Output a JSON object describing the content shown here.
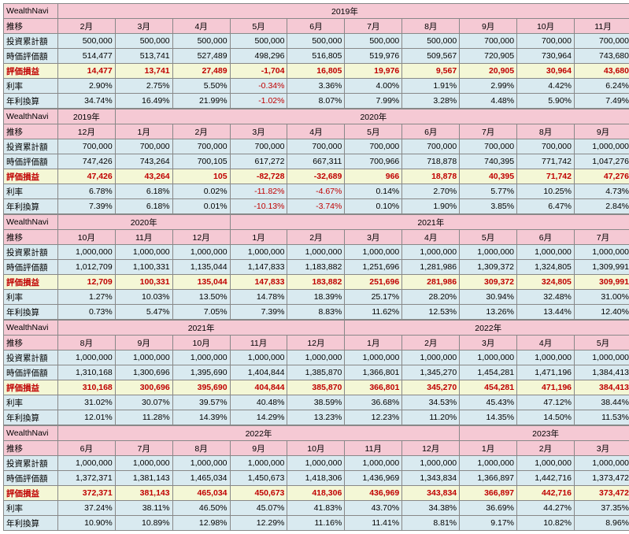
{
  "title": "WealthNavi",
  "subtitle": "推移",
  "row_labels": {
    "invest": "投資累計額",
    "mkt": "時価評価額",
    "pl": "評価損益",
    "rate": "利率",
    "ann": "年利換算"
  },
  "background_colors": {
    "header": "#f5c9d4",
    "data_blue": "#d9eaf0",
    "pl_row": "#f4f7d6",
    "pl_text": "#c00000",
    "border": "#888888"
  },
  "blocks": [
    {
      "year_spans": [
        {
          "label": "2019年",
          "span": 10
        }
      ],
      "months": [
        "2月",
        "3月",
        "4月",
        "5月",
        "6月",
        "7月",
        "8月",
        "9月",
        "10月",
        "11月"
      ],
      "invest": [
        "500,000",
        "500,000",
        "500,000",
        "500,000",
        "500,000",
        "500,000",
        "500,000",
        "700,000",
        "700,000",
        "700,000"
      ],
      "mkt": [
        "514,477",
        "513,741",
        "527,489",
        "498,296",
        "516,805",
        "519,976",
        "509,567",
        "720,905",
        "730,964",
        "743,680"
      ],
      "pl": [
        "14,477",
        "13,741",
        "27,489",
        "-1,704",
        "16,805",
        "19,976",
        "9,567",
        "20,905",
        "30,964",
        "43,680"
      ],
      "rate": [
        "2.90%",
        "2.75%",
        "5.50%",
        "-0.34%",
        "3.36%",
        "4.00%",
        "1.91%",
        "2.99%",
        "4.42%",
        "6.24%"
      ],
      "ann": [
        "34.74%",
        "16.49%",
        "21.99%",
        "-1.02%",
        "8.07%",
        "7.99%",
        "3.28%",
        "4.48%",
        "5.90%",
        "7.49%"
      ]
    },
    {
      "year_spans": [
        {
          "label": "2019年",
          "span": 1
        },
        {
          "label": "2020年",
          "span": 9
        }
      ],
      "months": [
        "12月",
        "1月",
        "2月",
        "3月",
        "4月",
        "5月",
        "6月",
        "7月",
        "8月",
        "9月"
      ],
      "invest": [
        "700,000",
        "700,000",
        "700,000",
        "700,000",
        "700,000",
        "700,000",
        "700,000",
        "700,000",
        "700,000",
        "1,000,000"
      ],
      "mkt": [
        "747,426",
        "743,264",
        "700,105",
        "617,272",
        "667,311",
        "700,966",
        "718,878",
        "740,395",
        "771,742",
        "1,047,276"
      ],
      "pl": [
        "47,426",
        "43,264",
        "105",
        "-82,728",
        "-32,689",
        "966",
        "18,878",
        "40,395",
        "71,742",
        "47,276"
      ],
      "rate": [
        "6.78%",
        "6.18%",
        "0.02%",
        "-11.82%",
        "-4.67%",
        "0.14%",
        "2.70%",
        "5.77%",
        "10.25%",
        "4.73%"
      ],
      "ann": [
        "7.39%",
        "6.18%",
        "0.01%",
        "-10.13%",
        "-3.74%",
        "0.10%",
        "1.90%",
        "3.85%",
        "6.47%",
        "2.84%"
      ]
    },
    {
      "year_spans": [
        {
          "label": "2020年",
          "span": 3
        },
        {
          "label": "2021年",
          "span": 7
        }
      ],
      "months": [
        "10月",
        "11月",
        "12月",
        "1月",
        "2月",
        "3月",
        "4月",
        "5月",
        "6月",
        "7月"
      ],
      "invest": [
        "1,000,000",
        "1,000,000",
        "1,000,000",
        "1,000,000",
        "1,000,000",
        "1,000,000",
        "1,000,000",
        "1,000,000",
        "1,000,000",
        "1,000,000"
      ],
      "mkt": [
        "1,012,709",
        "1,100,331",
        "1,135,044",
        "1,147,833",
        "1,183,882",
        "1,251,696",
        "1,281,986",
        "1,309,372",
        "1,324,805",
        "1,309,991"
      ],
      "pl": [
        "12,709",
        "100,331",
        "135,044",
        "147,833",
        "183,882",
        "251,696",
        "281,986",
        "309,372",
        "324,805",
        "309,991"
      ],
      "rate": [
        "1.27%",
        "10.03%",
        "13.50%",
        "14.78%",
        "18.39%",
        "25.17%",
        "28.20%",
        "30.94%",
        "32.48%",
        "31.00%"
      ],
      "ann": [
        "0.73%",
        "5.47%",
        "7.05%",
        "7.39%",
        "8.83%",
        "11.62%",
        "12.53%",
        "13.26%",
        "13.44%",
        "12.40%"
      ]
    },
    {
      "year_spans": [
        {
          "label": "2021年",
          "span": 5
        },
        {
          "label": "2022年",
          "span": 5
        }
      ],
      "months": [
        "8月",
        "9月",
        "10月",
        "11月",
        "12月",
        "1月",
        "2月",
        "3月",
        "4月",
        "5月"
      ],
      "invest": [
        "1,000,000",
        "1,000,000",
        "1,000,000",
        "1,000,000",
        "1,000,000",
        "1,000,000",
        "1,000,000",
        "1,000,000",
        "1,000,000",
        "1,000,000"
      ],
      "mkt": [
        "1,310,168",
        "1,300,696",
        "1,395,690",
        "1,404,844",
        "1,385,870",
        "1,366,801",
        "1,345,270",
        "1,454,281",
        "1,471,196",
        "1,384,413"
      ],
      "pl": [
        "310,168",
        "300,696",
        "395,690",
        "404,844",
        "385,870",
        "366,801",
        "345,270",
        "454,281",
        "471,196",
        "384,413"
      ],
      "rate": [
        "31.02%",
        "30.07%",
        "39.57%",
        "40.48%",
        "38.59%",
        "36.68%",
        "34.53%",
        "45.43%",
        "47.12%",
        "38.44%"
      ],
      "ann": [
        "12.01%",
        "11.28%",
        "14.39%",
        "14.29%",
        "13.23%",
        "12.23%",
        "11.20%",
        "14.35%",
        "14.50%",
        "11.53%"
      ]
    },
    {
      "year_spans": [
        {
          "label": "2022年",
          "span": 7
        },
        {
          "label": "2023年",
          "span": 3
        }
      ],
      "months": [
        "6月",
        "7月",
        "8月",
        "9月",
        "10月",
        "11月",
        "12月",
        "1月",
        "2月",
        "3月"
      ],
      "invest": [
        "1,000,000",
        "1,000,000",
        "1,000,000",
        "1,000,000",
        "1,000,000",
        "1,000,000",
        "1,000,000",
        "1,000,000",
        "1,000,000",
        "1,000,000"
      ],
      "mkt": [
        "1,372,371",
        "1,381,143",
        "1,465,034",
        "1,450,673",
        "1,418,306",
        "1,436,969",
        "1,343,834",
        "1,366,897",
        "1,442,716",
        "1,373,472"
      ],
      "pl": [
        "372,371",
        "381,143",
        "465,034",
        "450,673",
        "418,306",
        "436,969",
        "343,834",
        "366,897",
        "442,716",
        "373,472"
      ],
      "rate": [
        "37.24%",
        "38.11%",
        "46.50%",
        "45.07%",
        "41.83%",
        "43.70%",
        "34.38%",
        "36.69%",
        "44.27%",
        "37.35%"
      ],
      "ann": [
        "10.90%",
        "10.89%",
        "12.98%",
        "12.29%",
        "11.16%",
        "11.41%",
        "8.81%",
        "9.17%",
        "10.82%",
        "8.96%"
      ]
    }
  ]
}
